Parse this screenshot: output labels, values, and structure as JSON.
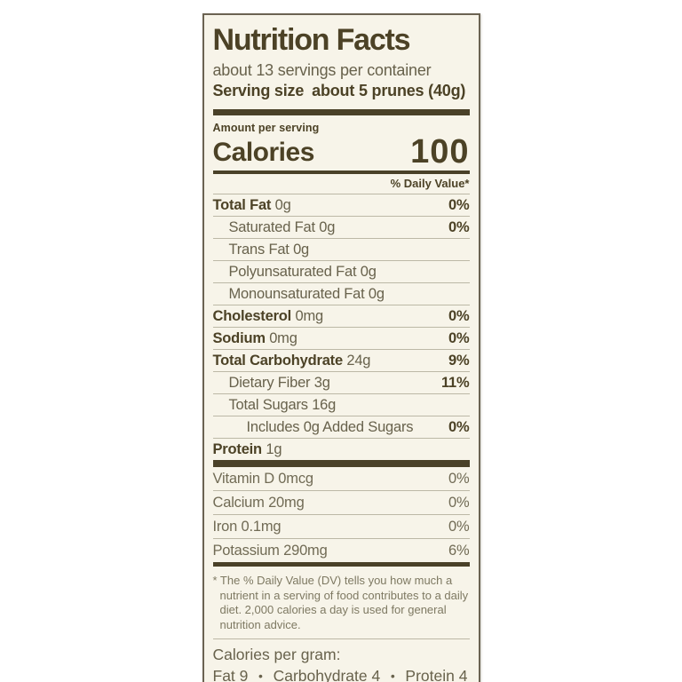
{
  "title": "Nutrition Facts",
  "servings": "about 13 servings per container",
  "serving_size": {
    "label": "Serving size",
    "value": "about 5 prunes (40g)"
  },
  "amount_per_serving": "Amount per serving",
  "calories": {
    "label": "Calories",
    "value": "100"
  },
  "daily_value_header": "% Daily Value*",
  "rows": [
    {
      "bold": "Total Fat",
      "rest": " 0g",
      "dv": "0%"
    },
    {
      "bold": "",
      "rest": "Saturated Fat 0g",
      "dv": "0%"
    },
    {
      "bold": "",
      "rest": "Trans Fat 0g",
      "dv": ""
    },
    {
      "bold": "",
      "rest": "Polyunsaturated Fat 0g",
      "dv": ""
    },
    {
      "bold": "",
      "rest": "Monounsaturated Fat 0g",
      "dv": ""
    },
    {
      "bold": "Cholesterol",
      "rest": " 0mg",
      "dv": "0%"
    },
    {
      "bold": "Sodium",
      "rest": " 0mg",
      "dv": "0%"
    },
    {
      "bold": "Total Carbohydrate",
      "rest": " 24g",
      "dv": "9%"
    },
    {
      "bold": "",
      "rest": "Dietary Fiber 3g",
      "dv": "11%"
    },
    {
      "bold": "",
      "rest": "Total Sugars 16g",
      "dv": ""
    },
    {
      "bold": "",
      "rest": "Includes 0g Added Sugars",
      "dv": "0%"
    },
    {
      "bold": "Protein",
      "rest": " 1g",
      "dv": ""
    }
  ],
  "vitamins": [
    {
      "text": "Vitamin D 0mcg",
      "dv": "0%"
    },
    {
      "text": "Calcium 20mg",
      "dv": "0%"
    },
    {
      "text": "Iron 0.1mg",
      "dv": "0%"
    },
    {
      "text": "Potassium 290mg",
      "dv": "6%"
    }
  ],
  "footnote": "* The % Daily Value (DV) tells you how much a nutrient in a serving of food contributes to a daily diet. 2,000 calories a day is used for general nutrition advice.",
  "calories_per_gram": {
    "title": "Calories per gram:",
    "items": [
      "Fat 9",
      "Carbohydrate 4",
      "Protein 4"
    ],
    "separator": "•"
  },
  "colors": {
    "label_background": "#f7f4e9",
    "ink_dark": "#4c4226",
    "ink_regular": "#68624c",
    "hairline": "#bcb8a6",
    "bar": "#4a4128"
  }
}
